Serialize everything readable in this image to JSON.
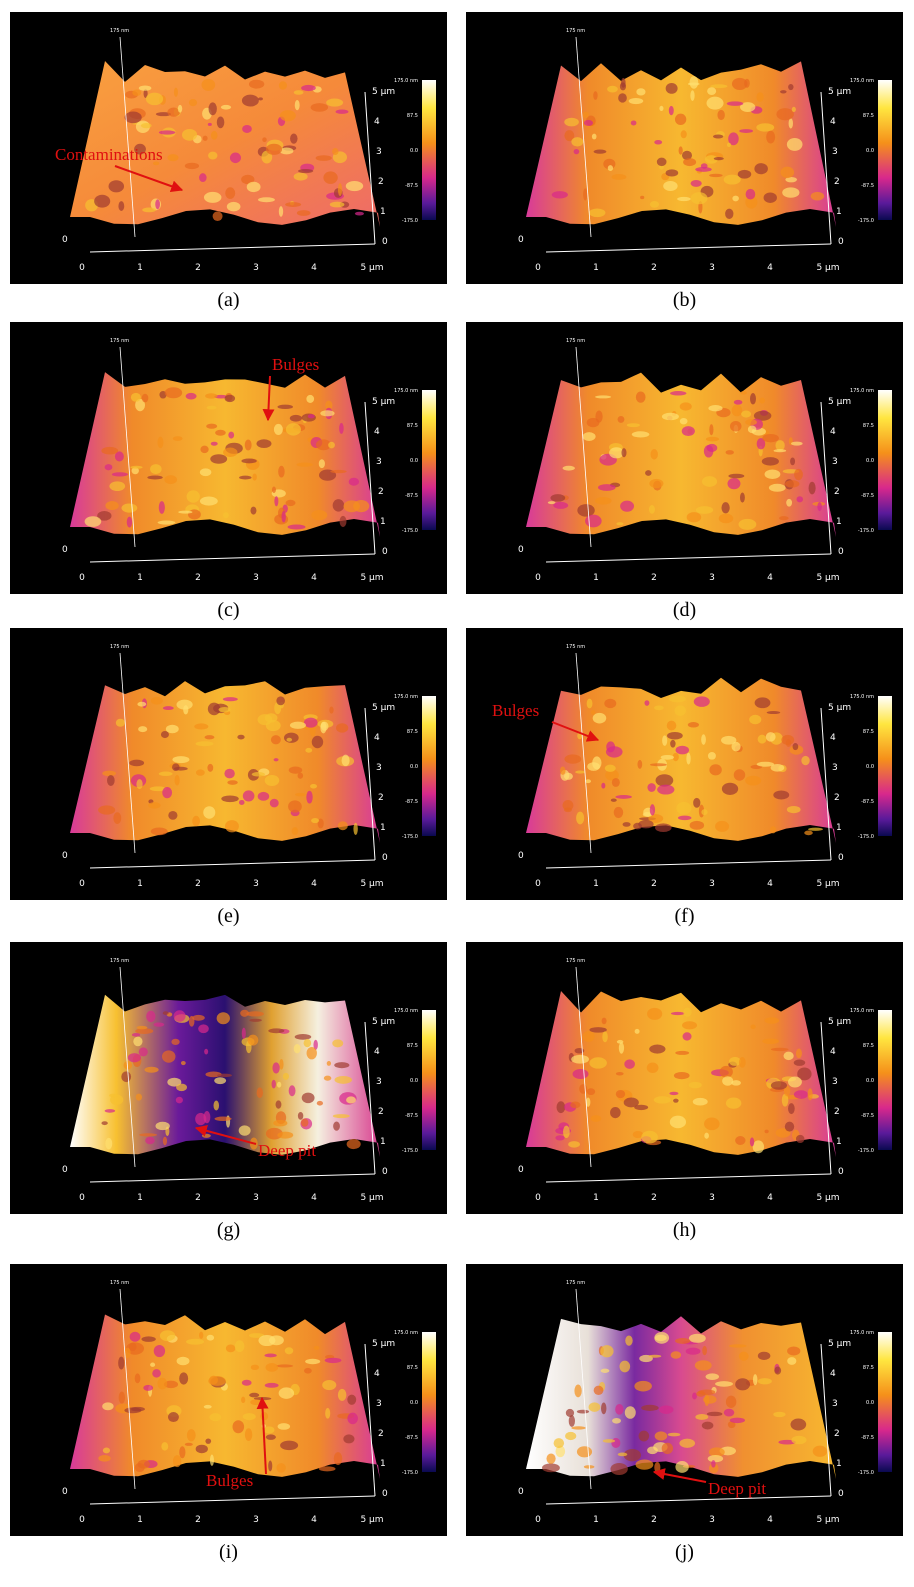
{
  "axes": {
    "z_label": "175 nm",
    "x_ticks": [
      "0",
      "1",
      "2",
      "3",
      "4",
      "5 µm"
    ],
    "y_ticks": [
      "0",
      "1",
      "2",
      "3",
      "4",
      "5 µm"
    ],
    "colorbar_ticks": [
      "175.0 nm",
      "87.5",
      "0.0",
      "-87.5",
      "-175.0"
    ]
  },
  "panels": [
    {
      "caption": "(a)",
      "annotation": "Contaminations"
    },
    {
      "caption": "(b)"
    },
    {
      "caption": "(c)",
      "annotation": "Bulges"
    },
    {
      "caption": "(d)"
    },
    {
      "caption": "(e)"
    },
    {
      "caption": "(f)",
      "annotation": "Bulges"
    },
    {
      "caption": "(g)",
      "annotation": "Deep pit"
    },
    {
      "caption": "(h)"
    },
    {
      "caption": "(i)",
      "annotation": "Bulges"
    },
    {
      "caption": "(j)",
      "annotation": "Deep pit"
    }
  ]
}
